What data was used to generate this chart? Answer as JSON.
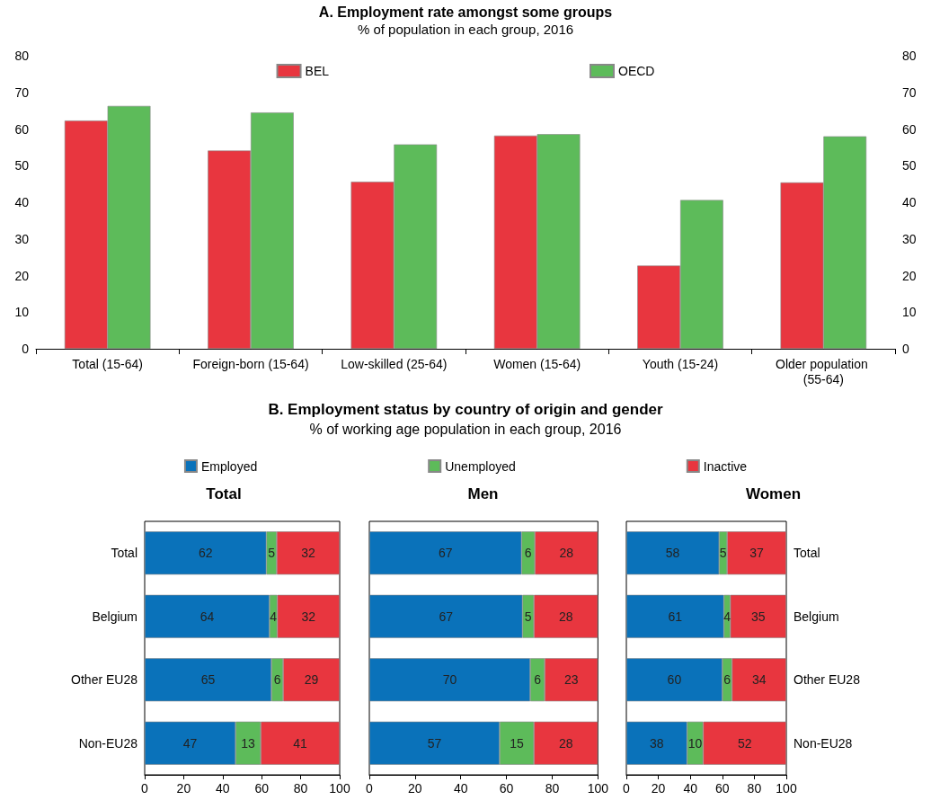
{
  "chart_data": [
    {
      "type": "bar",
      "title": "A. Employment rate amongst some groups",
      "subtitle": "% of population in each group, 2016",
      "categories": [
        "Total (15-64)",
        "Foreign-born (15-64)",
        "Low-skilled (25-64)",
        "Women (15-64)",
        "Youth (15-24)",
        "Older population (55-64)"
      ],
      "series": [
        {
          "name": "BEL",
          "color": "#e8363f",
          "values": [
            62.3,
            54.1,
            45.6,
            58.2,
            22.7,
            45.4
          ]
        },
        {
          "name": "OECD",
          "color": "#5dbb5a",
          "values": [
            66.3,
            64.5,
            55.8,
            58.6,
            40.6,
            58.0
          ]
        }
      ],
      "ylim": [
        0,
        80
      ],
      "yticks": [
        0,
        10,
        20,
        30,
        40,
        50,
        60,
        70,
        80
      ],
      "y2lim": [
        0,
        80
      ],
      "y2ticks": [
        0,
        10,
        20,
        30,
        40,
        50,
        60,
        70,
        80
      ],
      "legend": "top"
    },
    {
      "type": "other",
      "title": "B. Employment status by country of origin and gender",
      "subtitle": "% of working age population in each group, 2016"
    },
    {
      "type": "bar",
      "title": "Total",
      "orientation": "horizontal",
      "stacked": true,
      "categories": [
        "Total",
        "Belgium",
        "Other EU28",
        "Non-EU28"
      ],
      "series": [
        {
          "name": "Employed",
          "color": "#0a72ba",
          "values": [
            62.4,
            64,
            65,
            46.6
          ],
          "value_labels": [
            "62",
            "64",
            "65",
            "47"
          ]
        },
        {
          "name": "Unemployed",
          "color": "#5dbb5a",
          "values": [
            5.3,
            4,
            6,
            12.9
          ],
          "value_labels": [
            "5",
            "4",
            "6",
            "13"
          ]
        },
        {
          "name": "Inactive",
          "color": "#e8363f",
          "values": [
            32.3,
            32,
            29,
            40.5
          ],
          "value_labels": [
            "32",
            "32",
            "29",
            "41"
          ]
        }
      ],
      "xlim": [
        0,
        100
      ],
      "xticks": [
        0,
        20,
        40,
        60,
        80,
        100
      ],
      "legend": "top"
    },
    {
      "type": "bar",
      "title": "Men",
      "orientation": "horizontal",
      "stacked": true,
      "categories": [
        "Total",
        "Belgium",
        "Other EU28",
        "Non-EU28"
      ],
      "series": [
        {
          "color": "#0a72ba",
          "values": [
            66.6,
            67,
            70.4,
            57
          ],
          "value_labels": [
            "67",
            "67",
            "70",
            "57"
          ]
        },
        {
          "color": "#5dbb5a",
          "values": [
            5.8,
            5,
            6.3,
            15
          ],
          "value_labels": [
            "6",
            "5",
            "6",
            "15"
          ]
        },
        {
          "color": "#e8363f",
          "values": [
            27.6,
            28,
            23.3,
            28
          ],
          "value_labels": [
            "28",
            "28",
            "23",
            "28"
          ]
        }
      ],
      "xlim": [
        0,
        100
      ],
      "xticks": [
        0,
        20,
        40,
        60,
        80,
        100
      ],
      "tick_labels": "x"
    },
    {
      "type": "bar",
      "title": "Women",
      "orientation": "horizontal",
      "stacked": true,
      "categories": [
        "Total",
        "Belgium",
        "Other EU28",
        "Non-EU28"
      ],
      "series": [
        {
          "color": "#0a72ba",
          "values": [
            58,
            61,
            60,
            38
          ],
          "value_labels": [
            "58",
            "61",
            "60",
            "38"
          ]
        },
        {
          "color": "#5dbb5a",
          "values": [
            5,
            4,
            6,
            10
          ],
          "value_labels": [
            "5",
            "4",
            "6",
            "10"
          ]
        },
        {
          "color": "#e8363f",
          "values": [
            37,
            35,
            34,
            52
          ],
          "value_labels": [
            "37",
            "35",
            "34",
            "52"
          ]
        }
      ],
      "xlim": [
        0,
        100
      ],
      "xticks": [
        0,
        20,
        40,
        60,
        80,
        100
      ]
    }
  ]
}
